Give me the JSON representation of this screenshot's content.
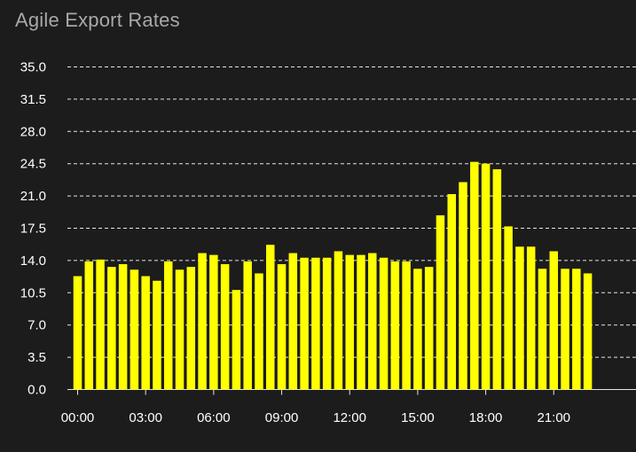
{
  "card": {
    "title": "Agile Export Rates"
  },
  "colors": {
    "background": "#1c1c1c",
    "bar": "#ffff00",
    "grid": "#e6e6e6",
    "text": "#ffffff",
    "title": "#a8a8a8"
  },
  "chart_data": {
    "type": "bar",
    "title": "Agile Export Rates",
    "xlabel": "",
    "ylabel": "",
    "ylim": [
      0,
      35
    ],
    "grid": true,
    "legend": "none",
    "y_ticks": [
      "0.0",
      "3.5",
      "7.0",
      "10.5",
      "14.0",
      "17.5",
      "21.0",
      "24.5",
      "28.0",
      "31.5",
      "35.0"
    ],
    "x_ticks": [
      "00:00",
      "03:00",
      "06:00",
      "09:00",
      "12:00",
      "15:00",
      "18:00",
      "21:00"
    ],
    "categories": [
      "00:00",
      "00:30",
      "01:00",
      "01:30",
      "02:00",
      "02:30",
      "03:00",
      "03:30",
      "04:00",
      "04:30",
      "05:00",
      "05:30",
      "06:00",
      "06:30",
      "07:00",
      "07:30",
      "08:00",
      "08:30",
      "09:00",
      "09:30",
      "10:00",
      "10:30",
      "11:00",
      "11:30",
      "12:00",
      "12:30",
      "13:00",
      "13:30",
      "14:00",
      "14:30",
      "15:00",
      "15:30",
      "16:00",
      "16:30",
      "17:00",
      "17:30",
      "18:00",
      "18:30",
      "19:00",
      "19:30",
      "20:00",
      "20:30",
      "21:00",
      "21:30",
      "22:00",
      "22:30"
    ],
    "values": [
      12.3,
      13.9,
      14.1,
      13.3,
      13.6,
      13.0,
      12.3,
      11.8,
      13.9,
      13.0,
      13.3,
      14.8,
      14.6,
      13.6,
      10.8,
      13.9,
      12.6,
      15.7,
      13.6,
      14.8,
      14.3,
      14.3,
      14.3,
      15.0,
      14.6,
      14.6,
      14.8,
      14.3,
      13.9,
      13.9,
      13.1,
      13.3,
      18.9,
      21.2,
      22.5,
      24.7,
      24.5,
      23.9,
      17.7,
      15.5,
      15.5,
      13.1,
      15.0,
      13.1,
      13.1,
      12.6
    ]
  }
}
